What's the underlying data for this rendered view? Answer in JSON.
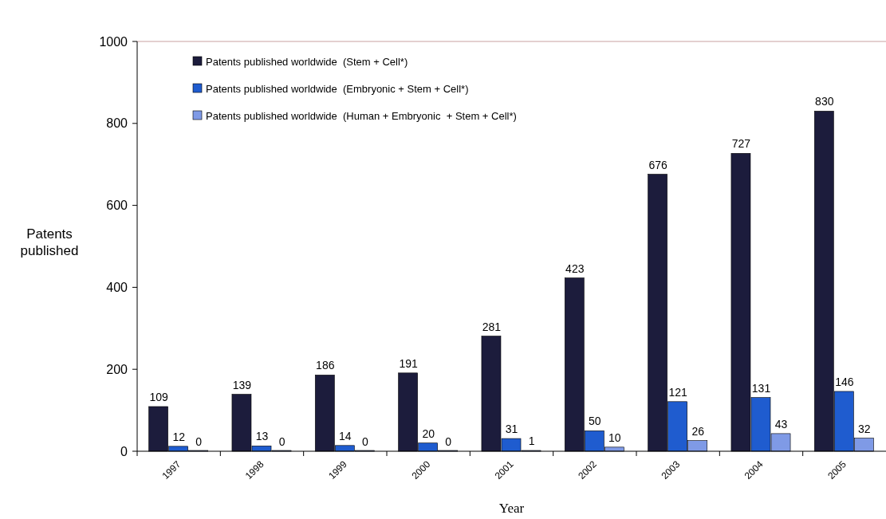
{
  "chart_data": {
    "type": "bar",
    "xlabel": "Year",
    "ylabel": "Patents\npublished",
    "categories": [
      "1997",
      "1998",
      "1999",
      "2000",
      "2001",
      "2002",
      "2003",
      "2004",
      "2005"
    ],
    "series": [
      {
        "name": "Patents published worldwide  (Stem + Cell*)",
        "color": "#1c1c3c",
        "values": [
          109,
          139,
          186,
          191,
          281,
          423,
          676,
          727,
          830
        ]
      },
      {
        "name": "Patents published worldwide  (Embryonic + Stem + Cell*)",
        "color": "#1f5ccf",
        "values": [
          12,
          13,
          14,
          20,
          31,
          50,
          121,
          131,
          146
        ]
      },
      {
        "name": "Patents published worldwide  (Human + Embryonic  + Stem + Cell*)",
        "color": "#7f9ae6",
        "values": [
          0,
          0,
          0,
          0,
          1,
          10,
          26,
          43,
          32
        ]
      }
    ],
    "ylim": [
      0,
      1000
    ],
    "yticks": [
      0,
      200,
      400,
      600,
      800,
      1000
    ],
    "grid": false,
    "legend": "top left",
    "data_labels": true
  }
}
